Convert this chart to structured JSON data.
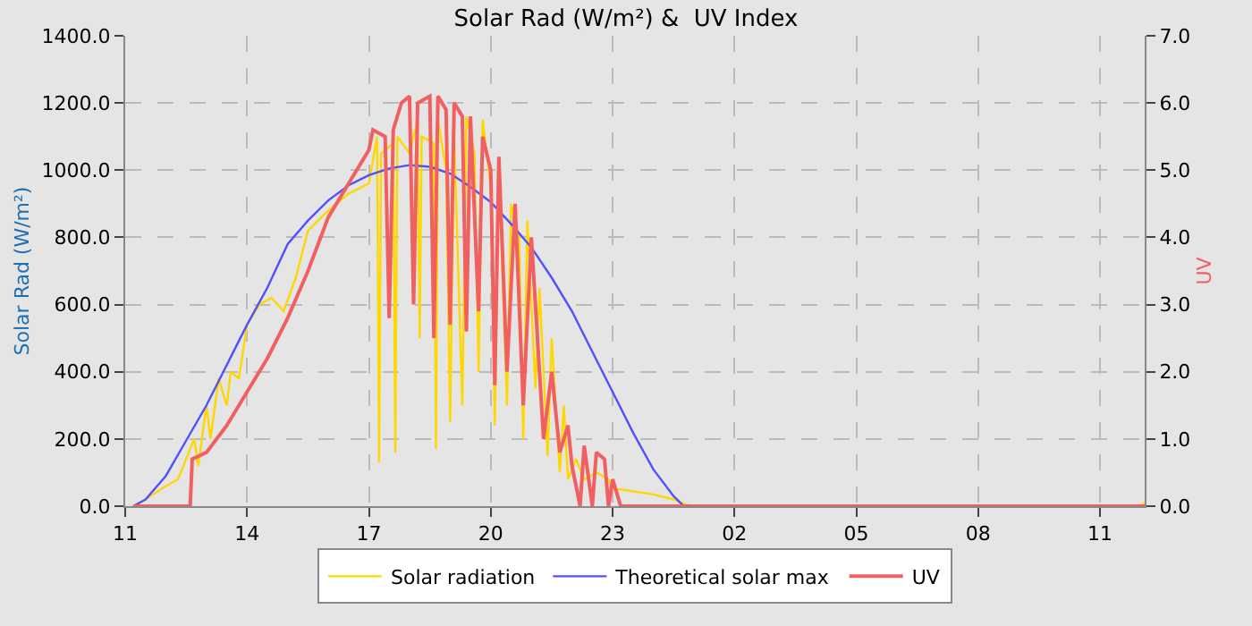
{
  "chart_data": {
    "type": "line",
    "title": "Solar Rad (W/m²) &  UV Index",
    "ylabel": "Solar Rad (W/m²)",
    "y2label": "UV",
    "xlim": [
      "--01-01T11:00",
      "--01-02T12:06"
    ],
    "xticks": [
      {
        "value": "--01-01T11:00",
        "label": "11"
      },
      {
        "value": "--01-01T14:00",
        "label": "14"
      },
      {
        "value": "--01-01T17:00",
        "label": "17"
      },
      {
        "value": "--01-01T20:00",
        "label": "20"
      },
      {
        "value": "--01-01T23:00",
        "label": "23"
      },
      {
        "value": "--01-02T02:00",
        "label": "02"
      },
      {
        "value": "--01-02T05:00",
        "label": "05"
      },
      {
        "value": "--01-02T08:00",
        "label": "08"
      },
      {
        "value": "--01-02T11:00",
        "label": "11"
      }
    ],
    "ylim": [
      0,
      1400
    ],
    "yticks": [
      {
        "value": 0,
        "label": "0.0"
      },
      {
        "value": 200,
        "label": "200.0"
      },
      {
        "value": 400,
        "label": "400.0"
      },
      {
        "value": 600,
        "label": "600.0"
      },
      {
        "value": 800,
        "label": "800.0"
      },
      {
        "value": 1000,
        "label": "1000.0"
      },
      {
        "value": 1200,
        "label": "1200.0"
      },
      {
        "value": 1400,
        "label": "1400.0"
      }
    ],
    "y2lim": [
      0,
      7
    ],
    "y2ticks": [
      {
        "value": 0,
        "label": "0.0"
      },
      {
        "value": 1,
        "label": "1.0"
      },
      {
        "value": 2,
        "label": "2.0"
      },
      {
        "value": 3,
        "label": "3.0"
      },
      {
        "value": 4,
        "label": "4.0"
      },
      {
        "value": 5,
        "label": "5.0"
      },
      {
        "value": 6,
        "label": "6.0"
      },
      {
        "value": 7,
        "label": "7.0"
      }
    ],
    "grid": true,
    "legend": "bottom",
    "marker": "none",
    "line_style": "solid",
    "series": [
      {
        "name": "Solar radiation",
        "color": "#ffd700",
        "x": [
          "--01-01T11:12",
          "--01-01T11:30",
          "--01-01T12:00",
          "--01-01T12:18",
          "--01-01T12:30",
          "--01-01T12:42",
          "--01-01T12:48",
          "--01-01T13:00",
          "--01-01T13:06",
          "--01-01T13:18",
          "--01-01T13:30",
          "--01-01T13:36",
          "--01-01T13:48",
          "--01-01T14:00",
          "--01-01T14:18",
          "--01-01T14:36",
          "--01-01T14:54",
          "--01-01T15:12",
          "--01-01T15:30",
          "--01-01T16:00",
          "--01-01T16:30",
          "--01-01T17:00",
          "--01-01T17:12",
          "--01-01T17:15",
          "--01-01T17:18",
          "--01-01T17:36",
          "--01-01T17:39",
          "--01-01T17:42",
          "--01-01T18:00",
          "--01-01T18:12",
          "--01-01T18:15",
          "--01-01T18:18",
          "--01-01T18:36",
          "--01-01T18:39",
          "--01-01T18:42",
          "--01-01T18:54",
          "--01-01T19:00",
          "--01-01T19:06",
          "--01-01T19:18",
          "--01-01T19:24",
          "--01-01T19:36",
          "--01-01T19:42",
          "--01-01T19:48",
          "--01-01T20:00",
          "--01-01T20:06",
          "--01-01T20:12",
          "--01-01T20:24",
          "--01-01T20:30",
          "--01-01T20:42",
          "--01-01T20:48",
          "--01-01T20:54",
          "--01-01T21:06",
          "--01-01T21:12",
          "--01-01T21:24",
          "--01-01T21:30",
          "--01-01T21:42",
          "--01-01T21:48",
          "--01-01T21:54",
          "--01-01T22:06",
          "--01-01T22:18",
          "--01-01T22:36",
          "--01-01T22:54",
          "--01-01T23:00",
          "--01-01T23:12",
          "--01-02T00:00",
          "--01-02T00:30",
          "--01-02T00:48",
          "--01-02T01:00",
          "--01-02T12:00",
          "--01-02T12:06"
        ],
        "values": [
          0,
          20,
          60,
          80,
          140,
          200,
          120,
          300,
          200,
          380,
          300,
          400,
          380,
          540,
          600,
          620,
          580,
          680,
          820,
          880,
          930,
          960,
          1100,
          130,
          1050,
          1080,
          160,
          1100,
          1050,
          1150,
          500,
          1100,
          1080,
          170,
          1150,
          1000,
          250,
          1100,
          300,
          1160,
          1050,
          400,
          1150,
          950,
          240,
          1000,
          300,
          900,
          800,
          200,
          850,
          350,
          650,
          150,
          500,
          100,
          300,
          80,
          140,
          80,
          100,
          80,
          50,
          50,
          35,
          20,
          5,
          0,
          0,
          10
        ]
      },
      {
        "name": "Theoretical solar max",
        "color": "#5050ff",
        "x": [
          "--01-01T11:12",
          "--01-01T11:30",
          "--01-01T12:00",
          "--01-01T12:30",
          "--01-01T13:00",
          "--01-01T13:30",
          "--01-01T14:00",
          "--01-01T14:30",
          "--01-01T15:00",
          "--01-01T15:30",
          "--01-01T16:00",
          "--01-01T16:30",
          "--01-01T17:00",
          "--01-01T17:30",
          "--01-01T18:00",
          "--01-01T18:30",
          "--01-01T19:00",
          "--01-01T19:30",
          "--01-01T20:00",
          "--01-01T20:30",
          "--01-01T21:00",
          "--01-01T21:30",
          "--01-01T22:00",
          "--01-01T22:30",
          "--01-01T23:00",
          "--01-01T23:30",
          "--01-02T00:00",
          "--01-02T00:30",
          "--01-02T00:45",
          "--01-02T12:06"
        ],
        "values": [
          0,
          20,
          90,
          195,
          300,
          420,
          540,
          650,
          780,
          850,
          910,
          955,
          985,
          1005,
          1015,
          1010,
          990,
          950,
          905,
          840,
          770,
          680,
          580,
          460,
          340,
          220,
          110,
          30,
          0,
          0
        ]
      },
      {
        "name": "UV",
        "color": "#f06060",
        "axis": "y2",
        "x": [
          "--01-01T11:12",
          "--01-01T12:36",
          "--01-01T12:39",
          "--01-01T13:00",
          "--01-01T13:30",
          "--01-01T14:00",
          "--01-01T14:30",
          "--01-01T15:00",
          "--01-01T15:30",
          "--01-01T16:00",
          "--01-01T16:30",
          "--01-01T17:00",
          "--01-01T17:06",
          "--01-01T17:24",
          "--01-01T17:30",
          "--01-01T17:36",
          "--01-01T17:48",
          "--01-01T18:00",
          "--01-01T18:06",
          "--01-01T18:12",
          "--01-01T18:30",
          "--01-01T18:36",
          "--01-01T18:42",
          "--01-01T18:54",
          "--01-01T19:00",
          "--01-01T19:06",
          "--01-01T19:18",
          "--01-01T19:24",
          "--01-01T19:30",
          "--01-01T19:42",
          "--01-01T19:48",
          "--01-01T20:00",
          "--01-01T20:06",
          "--01-01T20:12",
          "--01-01T20:24",
          "--01-01T20:36",
          "--01-01T20:48",
          "--01-01T21:00",
          "--01-01T21:06",
          "--01-01T21:18",
          "--01-01T21:30",
          "--01-01T21:42",
          "--01-01T21:54",
          "--01-01T22:00",
          "--01-01T22:12",
          "--01-01T22:18",
          "--01-01T22:30",
          "--01-01T22:36",
          "--01-01T22:48",
          "--01-01T22:54",
          "--01-01T23:00",
          "--01-01T23:12",
          "--01-02T12:06"
        ],
        "values": [
          0,
          0,
          0.7,
          0.8,
          1.2,
          1.7,
          2.2,
          2.8,
          3.5,
          4.3,
          4.8,
          5.3,
          5.6,
          5.5,
          2.8,
          5.6,
          6.0,
          6.1,
          3.0,
          6.0,
          6.1,
          2.5,
          6.1,
          5.9,
          2.7,
          6.0,
          5.8,
          2.6,
          5.8,
          2.9,
          5.5,
          5.0,
          1.8,
          5.2,
          2.0,
          4.5,
          1.5,
          4.0,
          3.0,
          1.0,
          2.0,
          0.8,
          1.2,
          0.6,
          0,
          0.9,
          0,
          0.8,
          0.7,
          0,
          0.4,
          0,
          0
        ]
      }
    ]
  }
}
